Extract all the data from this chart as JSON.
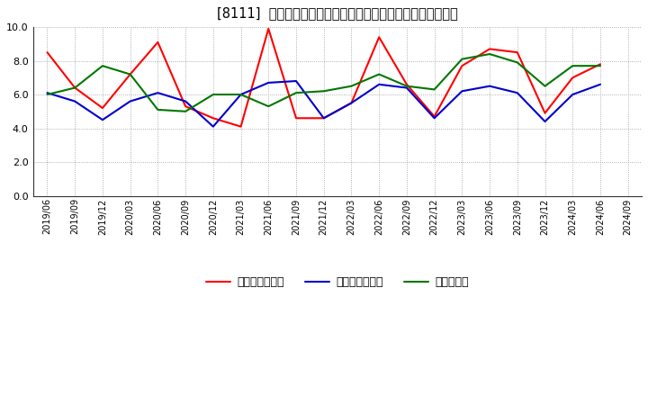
{
  "title": "[8111]  売上債権回転率、買入債務回転率、在庫回転率の推移",
  "dates": [
    "2019/06",
    "2019/09",
    "2019/12",
    "2020/03",
    "2020/06",
    "2020/09",
    "2020/12",
    "2021/03",
    "2021/06",
    "2021/09",
    "2021/12",
    "2022/03",
    "2022/06",
    "2022/09",
    "2022/12",
    "2023/03",
    "2023/06",
    "2023/09",
    "2023/12",
    "2024/03",
    "2024/06",
    "2024/09"
  ],
  "sales_receivable": [
    8.5,
    6.4,
    5.2,
    7.2,
    9.1,
    5.3,
    4.6,
    4.1,
    9.9,
    4.6,
    4.6,
    5.5,
    9.4,
    6.6,
    4.7,
    7.7,
    8.7,
    8.5,
    4.9,
    7.0,
    7.8,
    null
  ],
  "payable": [
    6.1,
    5.6,
    4.5,
    5.6,
    6.1,
    5.6,
    4.1,
    6.0,
    6.7,
    6.8,
    4.6,
    5.5,
    6.6,
    6.4,
    4.6,
    6.2,
    6.5,
    6.1,
    4.4,
    6.0,
    6.6,
    null
  ],
  "inventory": [
    6.0,
    6.4,
    7.7,
    7.2,
    5.1,
    5.0,
    6.0,
    6.0,
    5.3,
    6.1,
    6.2,
    6.5,
    7.2,
    6.5,
    6.3,
    8.1,
    8.4,
    7.9,
    6.5,
    7.7,
    7.7,
    null
  ],
  "sales_color": "#ff0000",
  "payable_color": "#0000cc",
  "inventory_color": "#007700",
  "ylim": [
    0.0,
    10.0
  ],
  "yticks": [
    0.0,
    2.0,
    4.0,
    6.0,
    8.0,
    10.0
  ],
  "legend_sales": "売上債権回転率",
  "legend_payable": "買入債務回転率",
  "legend_inventory": "在庫回転率",
  "bg_color": "#ffffff",
  "grid_color": "#999999",
  "spine_color": "#333333"
}
